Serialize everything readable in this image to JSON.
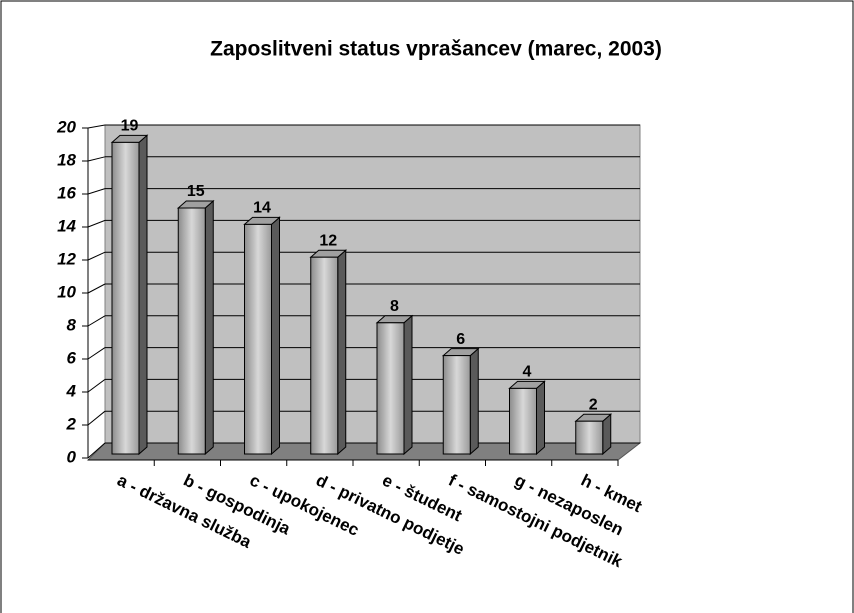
{
  "chart_data": {
    "type": "bar3d",
    "title": "Zaposlitveni status vprašancev (marec, 2003)",
    "categories": [
      "a - državna služba",
      "b - gospodinja",
      "c - upokojenec",
      "d - privatno podjetje",
      "e - študent",
      "f - samostojni podjetnik",
      "g - nezaposlen",
      "h - kmet"
    ],
    "values": [
      19,
      15,
      14,
      12,
      8,
      6,
      4,
      2
    ],
    "color": "#b4b4b4",
    "ylim": [
      0,
      20
    ],
    "yticks": [
      0,
      2,
      4,
      6,
      8,
      10,
      12,
      14,
      16,
      18,
      20
    ],
    "grid": true
  }
}
